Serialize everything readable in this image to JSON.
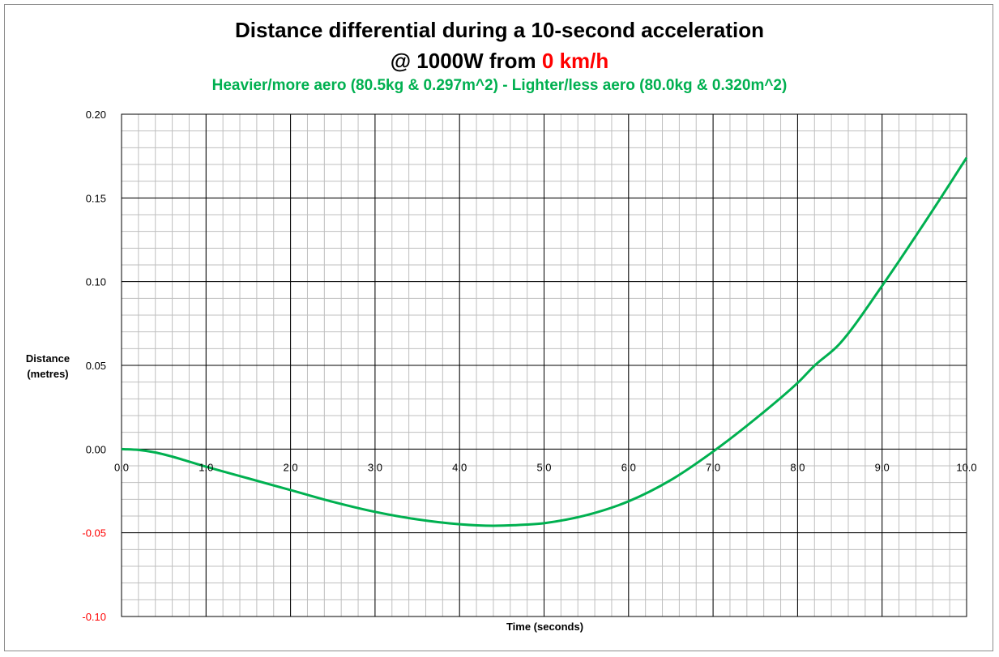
{
  "chart_data": {
    "type": "line",
    "title": "Distance differential during a 10-second acceleration",
    "title_line2_prefix": "@ 1000W from ",
    "title_line2_highlight": "0 km/h",
    "subtitle": "Heavier/more aero (80.5kg & 0.297m^2) - Lighter/less aero (80.0kg & 0.320m^2)",
    "xlabel": "Time (seconds)",
    "ylabel_line1": "Distance",
    "ylabel_line2": "(metres)",
    "xlim": [
      0,
      10
    ],
    "ylim": [
      -0.1,
      0.2
    ],
    "grid": true,
    "x_tick_labels": [
      "0.0",
      "1.0",
      "2.0",
      "3.0",
      "4.0",
      "5.0",
      "6.0",
      "7.0",
      "8.0",
      "9.0",
      "10.0"
    ],
    "y_tick_labels": [
      "-0.10",
      "-0.05",
      "0.00",
      "0.05",
      "0.10",
      "0.15",
      "0.20"
    ],
    "negative_tick_color": "#ff0000",
    "series": [
      {
        "name": "Distance differential",
        "color": "#00b050",
        "x": [
          0,
          0.2,
          0.4,
          0.6,
          0.8,
          1.0,
          1.5,
          2.0,
          2.5,
          3.0,
          3.5,
          4.0,
          4.4,
          4.8,
          5.0,
          5.5,
          6.0,
          6.5,
          7.0,
          7.5,
          8.0,
          8.2,
          8.5,
          9.0,
          9.5,
          10.0
        ],
        "y": [
          0,
          -0.0005,
          -0.002,
          -0.0045,
          -0.0075,
          -0.0105,
          -0.0175,
          -0.0245,
          -0.0315,
          -0.0375,
          -0.042,
          -0.0449,
          -0.0458,
          -0.0451,
          -0.0443,
          -0.0395,
          -0.0312,
          -0.0185,
          -0.0015,
          0.018,
          0.0395,
          0.0498,
          0.063,
          0.0975,
          0.135,
          0.174
        ]
      }
    ]
  },
  "colors": {
    "background": "#ffffff",
    "minor_grid": "#bfbfbf",
    "major_grid": "#000000",
    "title": "#000000",
    "subtitle": "#00b050",
    "highlight": "#ff0000"
  }
}
